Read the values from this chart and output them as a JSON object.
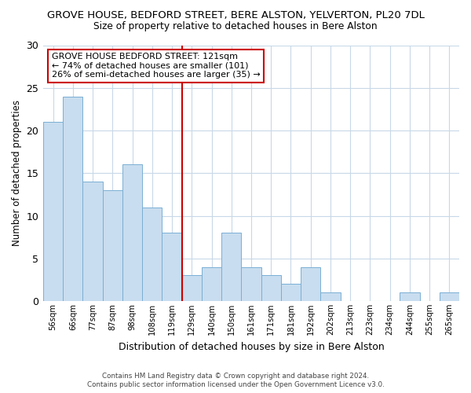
{
  "title": "GROVE HOUSE, BEDFORD STREET, BERE ALSTON, YELVERTON, PL20 7DL",
  "subtitle": "Size of property relative to detached houses in Bere Alston",
  "xlabel": "Distribution of detached houses by size in Bere Alston",
  "ylabel": "Number of detached properties",
  "bar_labels": [
    "56sqm",
    "66sqm",
    "77sqm",
    "87sqm",
    "98sqm",
    "108sqm",
    "119sqm",
    "129sqm",
    "140sqm",
    "150sqm",
    "161sqm",
    "171sqm",
    "181sqm",
    "192sqm",
    "202sqm",
    "213sqm",
    "223sqm",
    "234sqm",
    "244sqm",
    "255sqm",
    "265sqm"
  ],
  "bar_values": [
    21,
    24,
    14,
    13,
    16,
    11,
    8,
    3,
    4,
    8,
    4,
    3,
    2,
    4,
    1,
    0,
    0,
    0,
    1,
    0,
    1
  ],
  "bar_color": "#c8ddef",
  "bar_edge_color": "#7aafd4",
  "vline_index": 6,
  "vline_color": "#cc0000",
  "ylim": [
    0,
    30
  ],
  "yticks": [
    0,
    5,
    10,
    15,
    20,
    25,
    30
  ],
  "annotation_title": "GROVE HOUSE BEDFORD STREET: 121sqm",
  "annotation_line1": "← 74% of detached houses are smaller (101)",
  "annotation_line2": "26% of semi-detached houses are larger (35) →",
  "annotation_box_color": "#ffffff",
  "annotation_box_edge": "#cc0000",
  "footer_line1": "Contains HM Land Registry data © Crown copyright and database right 2024.",
  "footer_line2": "Contains public sector information licensed under the Open Government Licence v3.0.",
  "background_color": "#ffffff",
  "grid_color": "#c8d8e8"
}
